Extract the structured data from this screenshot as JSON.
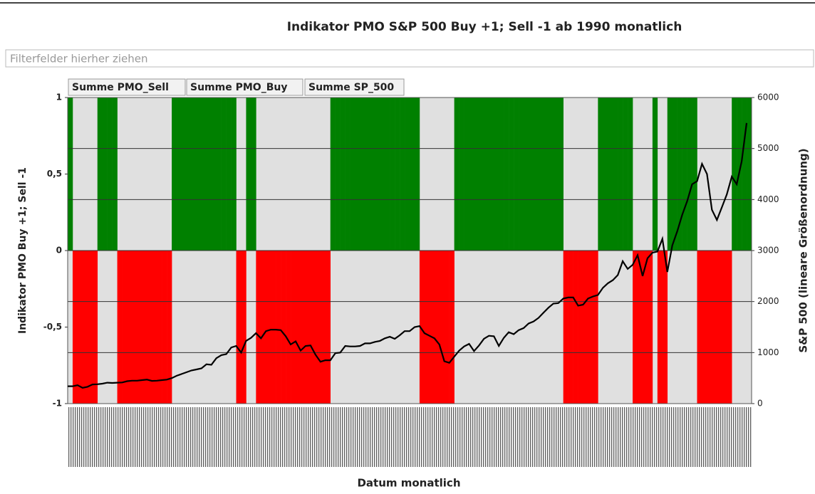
{
  "chart_data": {
    "type": "bar_line",
    "title": "Indikator PMO S&P 500 Buy +1; Sell -1 ab 1990 monatlich",
    "filter_placeholder": "Filterfelder hierher ziehen",
    "x_label": "Datum monatlich",
    "y_label": "Indikator PMO Buy +1; Sell -1",
    "y2_label": "S&P 500 (lineare Größenordnung)",
    "xlim": [
      1990,
      2024.5
    ],
    "ylim": [
      -1,
      1
    ],
    "yticks": [
      {
        "value": -1,
        "label": "-1"
      },
      {
        "value": -0.5,
        "label": "-0,5"
      },
      0,
      {
        "value": 0.5,
        "label": "0,5"
      },
      1
    ],
    "y2lim": [
      0,
      6000
    ],
    "y2ticks": [
      0,
      1000,
      2000,
      3000,
      4000,
      5000,
      6000
    ],
    "grid": true,
    "x": [
      1990,
      1990.25,
      1990.5,
      1990.75,
      1991,
      1991.25,
      1991.5,
      1991.75,
      1992,
      1992.25,
      1992.5,
      1992.75,
      1993,
      1993.25,
      1993.5,
      1993.75,
      1994,
      1994.25,
      1994.5,
      1994.75,
      1995,
      1995.25,
      1995.5,
      1995.75,
      1996,
      1996.25,
      1996.5,
      1996.75,
      1997,
      1997.25,
      1997.5,
      1997.75,
      1998,
      1998.25,
      1998.5,
      1998.75,
      1999,
      1999.25,
      1999.5,
      1999.75,
      2000,
      2000.25,
      2000.5,
      2000.75,
      2001,
      2001.25,
      2001.5,
      2001.75,
      2002,
      2002.25,
      2002.5,
      2002.75,
      2003,
      2003.25,
      2003.5,
      2003.75,
      2004,
      2004.25,
      2004.5,
      2004.75,
      2005,
      2005.25,
      2005.5,
      2005.75,
      2006,
      2006.25,
      2006.5,
      2006.75,
      2007,
      2007.25,
      2007.5,
      2007.75,
      2008,
      2008.25,
      2008.5,
      2008.75,
      2009,
      2009.25,
      2009.5,
      2009.75,
      2010,
      2010.25,
      2010.5,
      2010.75,
      2011,
      2011.25,
      2011.5,
      2011.75,
      2012,
      2012.25,
      2012.5,
      2012.75,
      2013,
      2013.25,
      2013.5,
      2013.75,
      2014,
      2014.25,
      2014.5,
      2014.75,
      2015,
      2015.25,
      2015.5,
      2015.75,
      2016,
      2016.25,
      2016.5,
      2016.75,
      2017,
      2017.25,
      2017.5,
      2017.75,
      2018,
      2018.25,
      2018.5,
      2018.75,
      2019,
      2019.25,
      2019.5,
      2019.75,
      2020,
      2020.25,
      2020.5,
      2020.75,
      2021,
      2021.25,
      2021.5,
      2021.75,
      2022,
      2022.25,
      2022.5,
      2022.75,
      2023,
      2023.25,
      2023.5,
      2023.75,
      2024,
      2024.25
    ],
    "series": [
      {
        "name": "Summe PMO_Sell",
        "color": "#ff0000",
        "values": [
          0,
          -1,
          -1,
          -1,
          -1,
          -1,
          0,
          0,
          0,
          0,
          -1,
          -1,
          -1,
          -1,
          -1,
          -1,
          -1,
          -1,
          -1,
          -1,
          -1,
          0,
          0,
          0,
          0,
          0,
          0,
          0,
          0,
          0,
          0,
          0,
          0,
          0,
          -1,
          -1,
          0,
          0,
          -1,
          -1,
          -1,
          -1,
          -1,
          -1,
          -1,
          -1,
          -1,
          -1,
          -1,
          -1,
          -1,
          -1,
          -1,
          0,
          0,
          0,
          0,
          0,
          0,
          0,
          0,
          0,
          0,
          0,
          0,
          0,
          0,
          0,
          0,
          0,
          0,
          -1,
          -1,
          -1,
          -1,
          -1,
          -1,
          -1,
          0,
          0,
          0,
          0,
          0,
          0,
          0,
          0,
          0,
          0,
          0,
          0,
          0,
          0,
          0,
          0,
          0,
          0,
          0,
          0,
          0,
          0,
          -1,
          -1,
          -1,
          -1,
          -1,
          -1,
          -1,
          0,
          0,
          0,
          0,
          0,
          0,
          0,
          -1,
          -1,
          -1,
          -1,
          0,
          -1,
          -1,
          0,
          0,
          0,
          0,
          0,
          0,
          -1,
          -1,
          -1,
          -1,
          -1,
          -1,
          -1,
          0,
          0,
          0,
          0
        ]
      },
      {
        "name": "Summe PMO_Buy",
        "color": "#008000",
        "values": [
          1,
          0,
          0,
          0,
          0,
          0,
          1,
          1,
          1,
          1,
          0,
          0,
          0,
          0,
          0,
          0,
          0,
          0,
          0,
          0,
          0,
          1,
          1,
          1,
          1,
          1,
          1,
          1,
          1,
          1,
          1,
          1,
          1,
          1,
          0,
          0,
          1,
          1,
          0,
          0,
          0,
          0,
          0,
          0,
          0,
          0,
          0,
          0,
          0,
          0,
          0,
          0,
          0,
          1,
          1,
          1,
          1,
          1,
          1,
          1,
          1,
          1,
          1,
          1,
          1,
          1,
          1,
          1,
          1,
          1,
          1,
          0,
          0,
          0,
          0,
          0,
          0,
          0,
          1,
          1,
          1,
          1,
          1,
          1,
          1,
          1,
          1,
          1,
          1,
          1,
          1,
          1,
          1,
          1,
          1,
          1,
          1,
          1,
          1,
          1,
          0,
          0,
          0,
          0,
          0,
          0,
          0,
          1,
          1,
          1,
          1,
          1,
          1,
          1,
          0,
          0,
          0,
          0,
          1,
          0,
          0,
          1,
          1,
          1,
          1,
          1,
          1,
          0,
          0,
          0,
          0,
          0,
          0,
          0,
          1,
          1,
          1,
          1
        ]
      },
      {
        "name": "Summe SP_500",
        "color": "#000000",
        "axis": "y2",
        "values": [
          340,
          340,
          360,
          310,
          330,
          375,
          380,
          390,
          410,
          405,
          410,
          415,
          440,
          450,
          450,
          460,
          470,
          445,
          450,
          460,
          470,
          500,
          545,
          580,
          615,
          650,
          670,
          690,
          770,
          760,
          890,
          950,
          970,
          1100,
          1130,
          1000,
          1230,
          1290,
          1380,
          1280,
          1420,
          1450,
          1450,
          1440,
          1320,
          1160,
          1220,
          1040,
          1130,
          1140,
          960,
          820,
          850,
          850,
          990,
          1000,
          1130,
          1120,
          1120,
          1130,
          1180,
          1180,
          1210,
          1230,
          1280,
          1310,
          1270,
          1340,
          1420,
          1420,
          1500,
          1520,
          1380,
          1330,
          1280,
          1160,
          830,
          800,
          920,
          1040,
          1120,
          1170,
          1030,
          1140,
          1270,
          1330,
          1320,
          1130,
          1290,
          1400,
          1360,
          1440,
          1480,
          1570,
          1610,
          1680,
          1780,
          1880,
          1960,
          1970,
          2060,
          2080,
          2080,
          1920,
          1940,
          2060,
          2100,
          2130,
          2270,
          2360,
          2420,
          2520,
          2790,
          2640,
          2720,
          2910,
          2500,
          2850,
          2960,
          2980,
          3230,
          2580,
          3100,
          3380,
          3700,
          3970,
          4300,
          4360,
          4700,
          4500,
          3800,
          3600,
          3850,
          4100,
          4450,
          4300,
          4750,
          5500
        ]
      }
    ]
  }
}
